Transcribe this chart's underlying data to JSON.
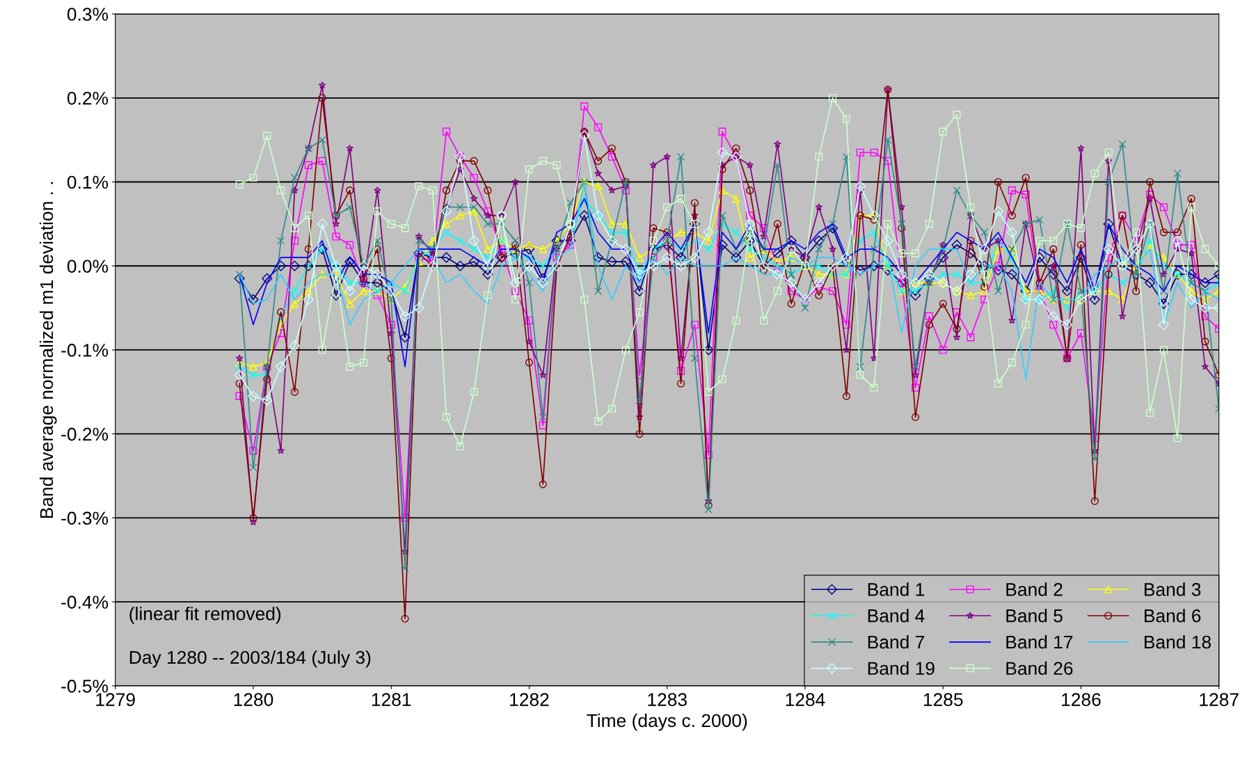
{
  "chart_data": {
    "type": "line",
    "xlabel": "Time (days c. 2000)",
    "ylabel": "Band average normalized m1 deviation . .",
    "x": [
      1279.9,
      1280.0,
      1280.1,
      1280.2,
      1280.3,
      1280.4,
      1280.5,
      1280.6,
      1280.7,
      1280.8,
      1280.9,
      1281.0,
      1281.1,
      1281.2,
      1281.3,
      1281.4,
      1281.5,
      1281.6,
      1281.7,
      1281.8,
      1281.9,
      1282.0,
      1282.1,
      1282.2,
      1282.3,
      1282.4,
      1282.5,
      1282.6,
      1282.7,
      1282.8,
      1282.9,
      1283.0,
      1283.1,
      1283.2,
      1283.3,
      1283.4,
      1283.5,
      1283.6,
      1283.7,
      1283.8,
      1283.9,
      1284.0,
      1284.1,
      1284.2,
      1284.3,
      1284.4,
      1284.5,
      1284.6,
      1284.7,
      1284.8,
      1284.9,
      1285.0,
      1285.1,
      1285.2,
      1285.3,
      1285.4,
      1285.5,
      1285.6,
      1285.7,
      1285.8,
      1285.9,
      1286.0,
      1286.1,
      1286.2,
      1286.3,
      1286.4,
      1286.5,
      1286.6,
      1286.7,
      1286.8,
      1286.9,
      1287.0
    ],
    "series": [
      {
        "name": "Band 1",
        "color": "#000080",
        "marker": "diamond",
        "values": [
          -0.015,
          -0.04,
          -0.015,
          0.0,
          0.0,
          0.0,
          0.02,
          -0.035,
          0.005,
          -0.02,
          -0.02,
          -0.03,
          -0.085,
          0.015,
          0.01,
          0.01,
          0.0,
          0.005,
          -0.01,
          0.01,
          0.015,
          0.02,
          -0.015,
          0.03,
          0.03,
          0.06,
          0.01,
          0.005,
          0.005,
          -0.03,
          0.02,
          0.025,
          0.01,
          0.05,
          -0.1,
          0.025,
          0.01,
          0.03,
          0.0,
          0.015,
          0.03,
          0.01,
          0.03,
          0.045,
          0.005,
          -0.005,
          0.0,
          -0.005,
          -0.02,
          -0.035,
          -0.015,
          0.01,
          0.025,
          0.015,
          0.0,
          -0.005,
          -0.01,
          -0.03,
          0.01,
          -0.01,
          -0.03,
          0.01,
          -0.04,
          0.05,
          0.0,
          -0.01,
          -0.02,
          -0.045,
          -0.01,
          -0.01,
          -0.02,
          -0.01
        ]
      },
      {
        "name": "Band 2",
        "color": "#ff00ff",
        "marker": "square",
        "values": [
          -0.155,
          -0.22,
          -0.12,
          -0.08,
          0.03,
          0.12,
          0.125,
          0.035,
          0.025,
          -0.02,
          -0.035,
          -0.07,
          -0.3,
          0.01,
          0.005,
          0.16,
          0.13,
          0.105,
          0.065,
          0.02,
          -0.03,
          -0.065,
          -0.19,
          0.01,
          0.025,
          0.19,
          0.165,
          0.13,
          0.09,
          -0.13,
          0.01,
          0.03,
          -0.125,
          -0.07,
          -0.225,
          0.16,
          0.13,
          0.06,
          0.045,
          0.0,
          -0.03,
          -0.04,
          -0.025,
          -0.03,
          -0.07,
          0.135,
          0.135,
          0.125,
          -0.02,
          -0.145,
          -0.06,
          -0.1,
          -0.055,
          -0.085,
          -0.04,
          0.0,
          0.09,
          0.085,
          -0.03,
          -0.07,
          -0.11,
          -0.08,
          -0.205,
          0.01,
          0.06,
          0.03,
          0.085,
          0.07,
          0.025,
          0.025,
          -0.06,
          -0.075
        ]
      },
      {
        "name": "Band 3",
        "color": "#ffff00",
        "marker": "triangle",
        "values": [
          -0.115,
          -0.12,
          -0.115,
          -0.07,
          -0.045,
          -0.03,
          -0.01,
          -0.01,
          -0.045,
          -0.03,
          -0.03,
          -0.04,
          -0.025,
          0.005,
          0.03,
          0.05,
          0.06,
          0.065,
          0.02,
          0.03,
          0.02,
          0.025,
          0.02,
          0.03,
          0.05,
          0.1,
          0.095,
          0.05,
          0.05,
          0.01,
          0.02,
          0.03,
          0.04,
          0.04,
          0.03,
          0.09,
          0.08,
          0.01,
          0.02,
          0.005,
          0.01,
          0.0,
          -0.01,
          -0.01,
          -0.01,
          0.06,
          0.06,
          0.0,
          -0.03,
          -0.02,
          -0.02,
          -0.02,
          -0.03,
          -0.035,
          -0.03,
          0.02,
          0.02,
          -0.03,
          -0.03,
          -0.04,
          -0.04,
          -0.04,
          -0.03,
          -0.03,
          -0.04,
          0.0,
          0.025,
          0.01,
          -0.01,
          -0.03,
          -0.04,
          -0.03
        ]
      },
      {
        "name": "Band 4",
        "color": "#00ffff",
        "marker": "cross",
        "values": [
          -0.12,
          -0.13,
          -0.13,
          -0.06,
          -0.03,
          0.0,
          0.02,
          0.0,
          -0.02,
          -0.02,
          -0.03,
          -0.02,
          -0.03,
          0.01,
          0.02,
          0.04,
          0.03,
          0.02,
          0.01,
          0.03,
          0.01,
          0.01,
          0.0,
          0.02,
          0.04,
          0.08,
          0.06,
          0.04,
          0.04,
          -0.01,
          0.02,
          0.03,
          0.02,
          0.03,
          0.02,
          0.05,
          0.04,
          0.02,
          0.01,
          0.0,
          -0.01,
          0.0,
          0.0,
          -0.01,
          -0.01,
          0.03,
          0.04,
          0.0,
          -0.03,
          -0.03,
          -0.02,
          -0.01,
          -0.01,
          -0.02,
          -0.02,
          0.03,
          0.01,
          -0.04,
          -0.04,
          -0.03,
          -0.05,
          -0.03,
          -0.03,
          -0.01,
          -0.02,
          -0.01,
          0.03,
          0.0,
          -0.01,
          -0.02,
          -0.03,
          -0.02
        ]
      },
      {
        "name": "Band 5",
        "color": "#800080",
        "marker": "star",
        "values": [
          -0.11,
          -0.305,
          -0.12,
          -0.22,
          0.09,
          0.14,
          0.215,
          0.05,
          0.14,
          -0.02,
          0.09,
          -0.08,
          -0.34,
          0.035,
          0.015,
          0.07,
          0.115,
          0.08,
          0.06,
          0.06,
          0.1,
          -0.09,
          -0.13,
          0.02,
          0.04,
          0.16,
          0.11,
          0.09,
          0.095,
          -0.18,
          0.12,
          0.13,
          -0.11,
          0.06,
          -0.28,
          0.12,
          0.13,
          0.12,
          0.035,
          0.145,
          0.02,
          0.01,
          0.07,
          0.02,
          -0.1,
          0.09,
          -0.11,
          0.21,
          0.07,
          -0.13,
          -0.02,
          0.025,
          -0.085,
          0.06,
          0.02,
          0.03,
          -0.065,
          0.05,
          -0.025,
          0.0,
          -0.11,
          0.14,
          -0.22,
          0.125,
          -0.06,
          0.02,
          0.08,
          -0.01,
          0.02,
          0.015,
          -0.12,
          -0.14
        ]
      },
      {
        "name": "Band 6",
        "color": "#800000",
        "marker": "circle",
        "values": [
          -0.14,
          -0.3,
          -0.135,
          -0.055,
          -0.15,
          0.02,
          0.2,
          0.06,
          0.09,
          -0.015,
          0.02,
          -0.11,
          -0.42,
          0.015,
          0.0,
          0.09,
          0.125,
          0.125,
          0.09,
          0.01,
          0.025,
          -0.115,
          -0.26,
          0.0,
          0.035,
          0.16,
          0.125,
          0.14,
          0.1,
          -0.2,
          0.045,
          0.04,
          -0.14,
          0.075,
          -0.285,
          0.115,
          0.14,
          0.09,
          -0.005,
          0.05,
          -0.045,
          0.005,
          -0.035,
          0.0,
          -0.155,
          0.06,
          0.055,
          0.21,
          0.045,
          -0.18,
          -0.07,
          -0.045,
          -0.075,
          0.03,
          -0.025,
          0.1,
          0.06,
          0.105,
          -0.02,
          0.02,
          -0.11,
          0.025,
          -0.28,
          -0.01,
          0.06,
          -0.03,
          0.1,
          0.04,
          0.04,
          0.08,
          -0.09,
          -0.13
        ]
      },
      {
        "name": "Band 7",
        "color": "#2e8b8b",
        "marker": "cross",
        "values": [
          -0.01,
          -0.24,
          -0.12,
          0.03,
          0.105,
          0.14,
          0.15,
          0.06,
          0.07,
          0.0,
          0.03,
          -0.04,
          -0.36,
          0.03,
          0.02,
          0.07,
          0.07,
          0.07,
          0.05,
          0.05,
          0.03,
          -0.02,
          -0.18,
          0.02,
          0.075,
          0.1,
          -0.03,
          0.03,
          0.1,
          -0.16,
          0.01,
          0.03,
          0.13,
          -0.11,
          -0.29,
          0.06,
          0.02,
          0.04,
          0.02,
          0.12,
          -0.01,
          -0.05,
          0.02,
          0.05,
          0.13,
          -0.12,
          0.02,
          0.15,
          0.05,
          -0.12,
          -0.02,
          0.02,
          0.09,
          0.06,
          0.04,
          -0.03,
          0.02,
          0.05,
          0.055,
          -0.04,
          0.05,
          -0.03,
          -0.23,
          0.1,
          0.145,
          -0.01,
          0.05,
          -0.03,
          0.11,
          -0.02,
          -0.03,
          -0.17
        ]
      },
      {
        "name": "Band 17",
        "color": "#0000ff",
        "marker": "none",
        "values": [
          -0.01,
          -0.07,
          -0.02,
          0.01,
          0.01,
          0.01,
          0.03,
          -0.02,
          0.01,
          -0.01,
          -0.01,
          -0.02,
          -0.12,
          0.02,
          0.02,
          0.02,
          0.02,
          0.01,
          0.0,
          0.02,
          0.02,
          0.01,
          -0.02,
          0.04,
          0.05,
          0.08,
          0.04,
          0.02,
          0.02,
          -0.02,
          0.02,
          0.04,
          0.02,
          0.05,
          -0.08,
          0.04,
          0.02,
          0.05,
          0.02,
          0.02,
          0.03,
          0.02,
          0.04,
          0.05,
          0.01,
          0.02,
          0.02,
          0.01,
          -0.01,
          -0.02,
          0.0,
          0.02,
          0.04,
          0.03,
          0.02,
          0.04,
          0.01,
          -0.02,
          0.02,
          0.01,
          -0.02,
          0.02,
          -0.03,
          0.05,
          0.02,
          0.0,
          -0.01,
          -0.03,
          0.0,
          -0.01,
          -0.02,
          -0.02
        ]
      },
      {
        "name": "Band 18",
        "color": "#33ccff",
        "marker": "none",
        "values": [
          -0.01,
          -0.045,
          -0.04,
          -0.01,
          -0.04,
          -0.02,
          -0.01,
          -0.01,
          -0.07,
          -0.04,
          -0.03,
          -0.02,
          0.0,
          0.02,
          0.01,
          -0.02,
          -0.01,
          -0.03,
          -0.045,
          0.0,
          0.01,
          -0.01,
          -0.03,
          0.01,
          0.02,
          0.1,
          0.0,
          -0.04,
          0.0,
          -0.02,
          0.01,
          -0.01,
          0.01,
          0.0,
          0.0,
          0.0,
          0.01,
          0.0,
          -0.01,
          -0.01,
          0.01,
          0.0,
          0.01,
          0.01,
          0.0,
          -0.01,
          0.0,
          0.01,
          -0.08,
          0.0,
          0.02,
          0.02,
          0.02,
          -0.02,
          0.0,
          0.0,
          -0.03,
          -0.135,
          -0.02,
          -0.04,
          -0.04,
          -0.04,
          -0.01,
          0.0,
          0.01,
          0.0,
          0.02,
          -0.07,
          -0.02,
          -0.05,
          -0.03,
          -0.04
        ]
      },
      {
        "name": "Band 19",
        "color": "#ccffff",
        "marker": "diamond",
        "values": [
          -0.13,
          -0.155,
          -0.16,
          -0.12,
          -0.095,
          -0.04,
          0.05,
          0.0,
          -0.03,
          0.0,
          -0.01,
          -0.03,
          -0.06,
          -0.05,
          0.0,
          0.065,
          0.13,
          0.03,
          0.0,
          0.06,
          -0.02,
          0.0,
          -0.02,
          0.0,
          0.05,
          0.155,
          0.06,
          0.03,
          0.02,
          -0.01,
          0.0,
          0.01,
          0.0,
          0.01,
          0.04,
          0.135,
          0.13,
          0.05,
          0.0,
          -0.01,
          -0.02,
          -0.04,
          -0.02,
          0.0,
          0.01,
          0.095,
          0.06,
          0.03,
          -0.01,
          -0.02,
          -0.01,
          -0.02,
          -0.03,
          -0.01,
          0.02,
          0.065,
          0.04,
          -0.04,
          -0.04,
          -0.06,
          -0.07,
          -0.04,
          -0.03,
          0.02,
          0.0,
          0.02,
          0.05,
          -0.07,
          0.03,
          -0.04,
          -0.05,
          -0.05
        ]
      },
      {
        "name": "Band 26",
        "color": "#ccffcc",
        "marker": "square",
        "values": [
          0.097,
          0.105,
          0.155,
          0.09,
          0.045,
          0.06,
          -0.1,
          -0.01,
          -0.12,
          -0.115,
          0.065,
          0.05,
          0.045,
          0.095,
          0.09,
          -0.18,
          -0.215,
          -0.15,
          -0.035,
          0.06,
          -0.04,
          0.115,
          0.125,
          0.12,
          0.05,
          -0.04,
          -0.185,
          -0.17,
          -0.1,
          -0.055,
          0.03,
          0.07,
          0.08,
          0.05,
          -0.15,
          -0.135,
          -0.065,
          0.04,
          -0.065,
          -0.03,
          0.02,
          0.0,
          0.13,
          0.2,
          0.175,
          -0.13,
          -0.145,
          0.05,
          0.015,
          0.015,
          0.05,
          0.16,
          0.18,
          0.07,
          -0.01,
          -0.14,
          -0.115,
          -0.07,
          0.03,
          0.03,
          0.05,
          0.045,
          0.11,
          0.135,
          0.0,
          0.04,
          -0.175,
          -0.1,
          -0.205,
          0.07,
          0.02,
          0.0
        ]
      }
    ],
    "xlim": [
      1279,
      1287
    ],
    "xticks": [
      1279,
      1280,
      1281,
      1282,
      1283,
      1284,
      1285,
      1286,
      1287
    ],
    "ylim": [
      -0.5,
      0.3
    ],
    "yticks": [
      {
        "value": -0.5,
        "label": "-0.5%"
      },
      {
        "value": -0.4,
        "label": "-0.4%"
      },
      {
        "value": -0.3,
        "label": "-0.3%"
      },
      {
        "value": -0.2,
        "label": "-0.2%"
      },
      {
        "value": -0.1,
        "label": "-0.1%"
      },
      {
        "value": 0.0,
        "label": "0.0%"
      },
      {
        "value": 0.1,
        "label": "0.1%"
      },
      {
        "value": 0.2,
        "label": "0.2%"
      },
      {
        "value": 0.3,
        "label": "0.3%"
      }
    ],
    "annotations": [
      "(linear fit removed)",
      "Day 1280 -- 2003/184 (July 3)"
    ],
    "grid": "y",
    "legend": "bottom right"
  }
}
